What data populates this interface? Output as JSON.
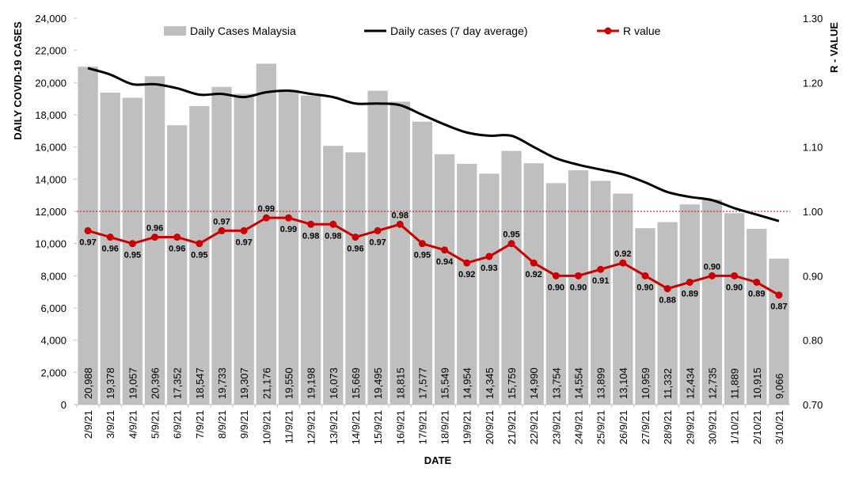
{
  "chart_data": {
    "type": "bar",
    "categories": [
      "2/9/21",
      "3/9/21",
      "4/9/21",
      "5/9/21",
      "6/9/21",
      "7/9/21",
      "8/9/21",
      "9/9/21",
      "10/9/21",
      "11/9/21",
      "12/9/21",
      "13/9/21",
      "14/9/21",
      "15/9/21",
      "16/9/21",
      "17/9/21",
      "18/9/21",
      "19/9/21",
      "20/9/21",
      "21/9/21",
      "22/9/21",
      "23/9/21",
      "24/9/21",
      "25/9/21",
      "26/9/21",
      "27/9/21",
      "28/9/21",
      "29/9/21",
      "30/9/21",
      "1/10/21",
      "2/10/21",
      "3/10/21"
    ],
    "xlabel": "DATE",
    "ylabel": "DAILY COVID-19 CASES",
    "y2label": "R - VALUE",
    "ylim": [
      0,
      24000
    ],
    "y2lim": [
      0.7,
      1.3
    ],
    "yticks": [
      "0",
      "2,000",
      "4,000",
      "6,000",
      "8,000",
      "10,000",
      "12,000",
      "14,000",
      "16,000",
      "18,000",
      "20,000",
      "22,000",
      "24,000"
    ],
    "y2ticks": [
      "0.70",
      "0.80",
      "0.90",
      "1.00",
      "1.10",
      "1.20",
      "1.30"
    ],
    "reference_line_r": 1.0,
    "legend_position": "top",
    "series": [
      {
        "name": "Daily Cases Malaysia",
        "kind": "bar",
        "axis": "left",
        "color": "#bfbfbf",
        "values": [
          20988,
          19378,
          19057,
          20396,
          17352,
          18547,
          19733,
          19307,
          21176,
          19550,
          19198,
          16073,
          15669,
          19495,
          18815,
          17577,
          15549,
          14954,
          14345,
          15759,
          14990,
          13754,
          14554,
          13899,
          13104,
          10959,
          11332,
          12434,
          12735,
          11889,
          10915,
          9066
        ],
        "labels": [
          "20,988",
          "19,378",
          "19,057",
          "20,396",
          "17,352",
          "18,547",
          "19,733",
          "19,307",
          "21,176",
          "19,550",
          "19,198",
          "16,073",
          "15,669",
          "19,495",
          "18,815",
          "17,577",
          "15,549",
          "14,954",
          "14,345",
          "15,759",
          "14,990",
          "13,754",
          "14,554",
          "13,899",
          "13,104",
          "10,959",
          "11,332",
          "12,434",
          "12,735",
          "11,889",
          "10,915",
          "9,066"
        ]
      },
      {
        "name": "Daily cases (7 day average)",
        "kind": "line",
        "axis": "left",
        "color": "#000000",
        "values": [
          20900,
          20500,
          19900,
          19900,
          19650,
          19250,
          19300,
          19100,
          19400,
          19500,
          19300,
          19100,
          18700,
          18700,
          18600,
          18000,
          17400,
          16900,
          16700,
          16700,
          16000,
          15300,
          14900,
          14600,
          14300,
          13800,
          13200,
          12900,
          12700,
          12200,
          11800,
          11400
        ]
      },
      {
        "name": "R value",
        "kind": "line-markers",
        "axis": "right",
        "color": "#cc0000",
        "values": [
          0.97,
          0.96,
          0.95,
          0.96,
          0.96,
          0.95,
          0.97,
          0.97,
          0.99,
          0.99,
          0.98,
          0.98,
          0.96,
          0.97,
          0.98,
          0.95,
          0.94,
          0.92,
          0.93,
          0.95,
          0.92,
          0.9,
          0.9,
          0.91,
          0.92,
          0.9,
          0.88,
          0.89,
          0.9,
          0.9,
          0.89,
          0.87
        ],
        "labels": [
          "0.97",
          "0.96",
          "0.95",
          "0.96",
          "0.96",
          "0.95",
          "0.97",
          "0.97",
          "0.99",
          "0.99",
          "0.98",
          "0.98",
          "0.96",
          "0.97",
          "0.98",
          "0.95",
          "0.94",
          "0.92",
          "0.93",
          "0.95",
          "0.92",
          "0.90",
          "0.90",
          "0.91",
          "0.92",
          "0.90",
          "0.88",
          "0.89",
          "0.90",
          "0.90",
          "0.89",
          "0.87"
        ]
      }
    ]
  }
}
